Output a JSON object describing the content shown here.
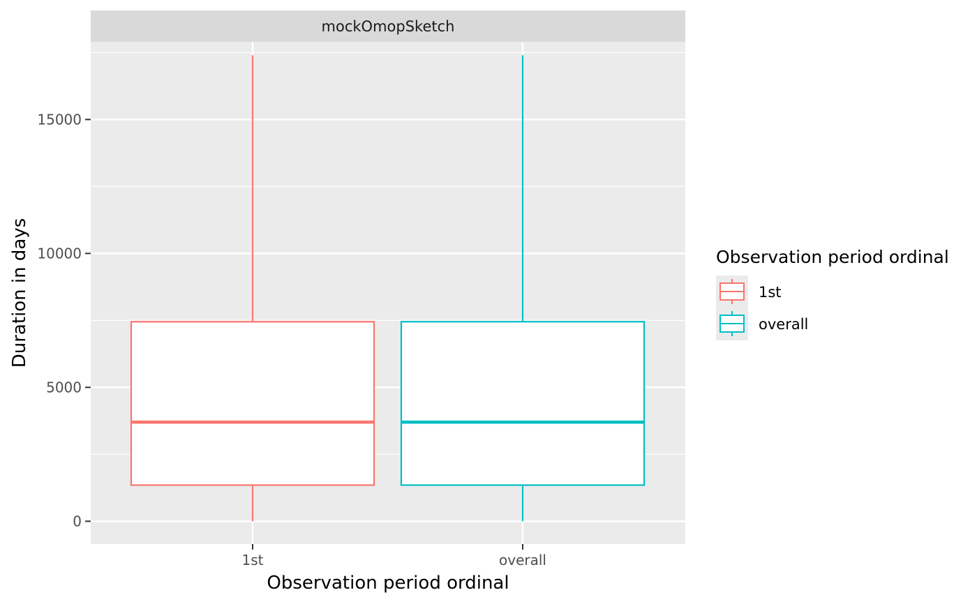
{
  "chart_data": {
    "type": "boxplot",
    "facet_label": "mockOmopSketch",
    "xlabel": "Observation period ordinal",
    "ylabel": "Duration in days",
    "categories": [
      "1st",
      "overall"
    ],
    "y_ticks": [
      0,
      5000,
      10000,
      15000
    ],
    "y_tick_labels": [
      "0",
      "5000",
      "10000",
      "15000"
    ],
    "ylim": [
      -850,
      17900
    ],
    "grid": true,
    "boxes": [
      {
        "name": "1st",
        "min": 0,
        "q1": 1350,
        "median": 3700,
        "q3": 7450,
        "max": 17400,
        "color": "#F8766D"
      },
      {
        "name": "overall",
        "min": 0,
        "q1": 1350,
        "median": 3700,
        "q3": 7450,
        "max": 17400,
        "color": "#00BFC4"
      }
    ],
    "legend": {
      "title": "Observation period ordinal",
      "position": "right",
      "entries": [
        {
          "label": "1st",
          "color": "#F8766D"
        },
        {
          "label": "overall",
          "color": "#00BFC4"
        }
      ]
    }
  }
}
